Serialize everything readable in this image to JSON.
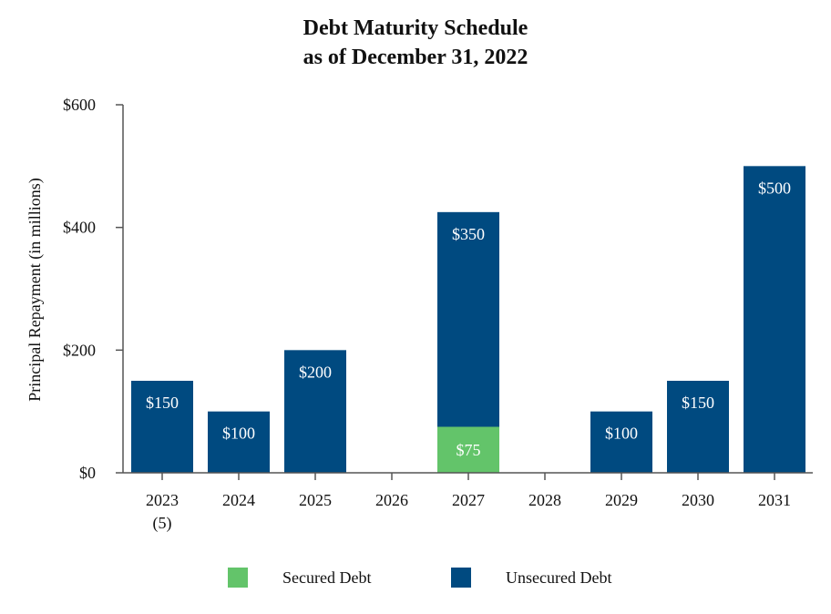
{
  "chart_data": {
    "type": "bar",
    "stacked": true,
    "title": [
      "Debt Maturity Schedule",
      "as of December 31, 2022"
    ],
    "ylabel": "Principal Repayment (in millions)",
    "xlabel": "",
    "ylim": [
      0,
      600
    ],
    "yticks": [
      0,
      200,
      400,
      600
    ],
    "ytick_labels": [
      "$0",
      "$200",
      "$400",
      "$600"
    ],
    "categories": [
      [
        "2023",
        "(5)"
      ],
      [
        "2024"
      ],
      [
        "2025"
      ],
      [
        "2026"
      ],
      [
        "2027"
      ],
      [
        "2028"
      ],
      [
        "2029"
      ],
      [
        "2030"
      ],
      [
        "2031"
      ]
    ],
    "series": [
      {
        "name": "Secured Debt",
        "color": "#63c46a",
        "values": [
          0,
          0,
          0,
          0,
          75,
          0,
          0,
          0,
          0
        ],
        "labels": [
          "",
          "",
          "",
          "",
          "$75",
          "",
          "",
          "",
          ""
        ]
      },
      {
        "name": "Unsecured Debt",
        "color": "#004a80",
        "values": [
          150,
          100,
          200,
          0,
          350,
          0,
          100,
          150,
          500
        ],
        "labels": [
          "$150",
          "$100",
          "$200",
          "",
          "$350",
          "",
          "$100",
          "$150",
          "$500"
        ]
      }
    ],
    "legend_position": "bottom",
    "grid": false
  }
}
